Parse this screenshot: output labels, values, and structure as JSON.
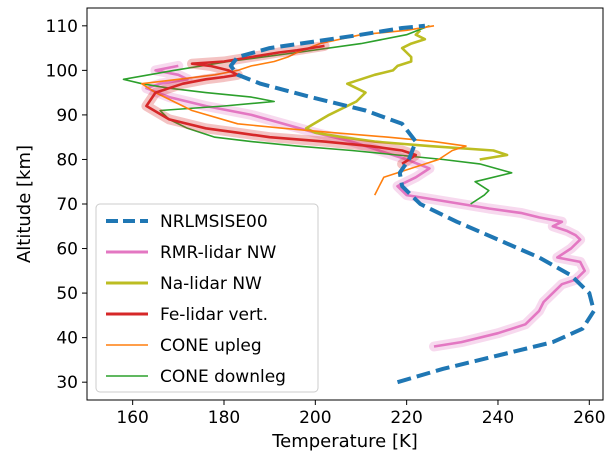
{
  "chart_data": {
    "type": "line",
    "xlabel": "Temperature [K]",
    "ylabel": "Altitude [km]",
    "xlim": [
      150,
      263
    ],
    "ylim": [
      26,
      114
    ],
    "xticks": [
      "160",
      "180",
      "200",
      "220",
      "240",
      "260"
    ],
    "yticks": [
      "30",
      "40",
      "50",
      "60",
      "70",
      "80",
      "90",
      "100",
      "110"
    ],
    "legend_position": "lower-left",
    "series": [
      {
        "name": "NRLMSISE00",
        "color": "#1f77b4",
        "style": "dashed",
        "x": [
          218,
          228,
          240,
          252,
          258.5,
          261,
          260,
          256,
          249,
          240,
          231,
          223,
          219,
          218.5,
          220.5,
          222,
          219,
          211,
          199,
          188,
          183,
          181.5,
          183,
          190,
          200,
          210,
          219,
          224
        ],
        "y": [
          30,
          33,
          36,
          39,
          42,
          46,
          50,
          54,
          58,
          62,
          66,
          70,
          74,
          77,
          80,
          84,
          88,
          91,
          94,
          97,
          99,
          101,
          103,
          105,
          106.5,
          108,
          109.5,
          110
        ]
      },
      {
        "name": "RMR-lidar NW",
        "color": "#e377c2",
        "style": "solid",
        "x": [
          226,
          232,
          240,
          246,
          249,
          250,
          252,
          254,
          257,
          259,
          258,
          253,
          256,
          258,
          257,
          255,
          252,
          254,
          249,
          245,
          238,
          232,
          226,
          220,
          218,
          222,
          225,
          220,
          214,
          208,
          200,
          193,
          186,
          176,
          168,
          163,
          166,
          172,
          170,
          165,
          170
        ],
        "y": [
          38,
          39,
          41,
          43,
          46,
          48,
          50,
          52,
          53,
          55,
          57,
          58,
          60,
          62,
          63,
          64,
          65,
          66,
          67,
          68,
          69,
          70,
          71,
          72,
          74,
          76,
          78,
          80,
          82,
          84,
          86,
          88,
          90,
          92,
          94,
          96,
          97,
          98,
          99,
          100,
          101
        ]
      },
      {
        "name": "Na-lidar NW",
        "color": "#bcbd22",
        "style": "solid",
        "x": [
          236,
          242,
          239,
          225,
          213,
          206,
          200,
          198,
          203,
          209,
          211,
          207,
          213,
          217,
          218,
          221,
          221,
          220,
          219,
          221,
          224,
          222,
          223
        ],
        "y": [
          80,
          81,
          82,
          83,
          84,
          85,
          86,
          87,
          90,
          93,
          95,
          97,
          99,
          100,
          101,
          102,
          103,
          104,
          105,
          106,
          107,
          108,
          109
        ]
      },
      {
        "name": "Fe-lidar vert.",
        "color": "#d62728",
        "style": "solid",
        "x": [
          219,
          222,
          219,
          212,
          202,
          190,
          183,
          176,
          168,
          163,
          165,
          171,
          176,
          180,
          183,
          181,
          177,
          173,
          180,
          186,
          192,
          196,
          199,
          202
        ],
        "y": [
          79,
          81,
          82,
          83,
          84,
          85,
          86,
          87,
          89,
          92,
          95,
          97,
          98,
          98.5,
          99,
          100,
          101,
          101.5,
          102,
          103,
          104,
          104.5,
          105,
          105.5
        ]
      },
      {
        "name": "CONE upleg",
        "color": "#ff7f0e",
        "style": "solid",
        "x": [
          213,
          214,
          215,
          221,
          227,
          230,
          233,
          226,
          216,
          204,
          193,
          183,
          173,
          165,
          162,
          170,
          178,
          183,
          186,
          191,
          194,
          196,
          201,
          210,
          220,
          226
        ],
        "y": [
          72,
          74,
          76,
          78,
          80,
          82,
          83,
          84,
          85,
          86,
          87,
          88,
          91,
          95,
          97,
          98,
          99,
          100,
          101,
          102,
          103,
          104,
          106,
          108,
          109,
          110
        ]
      },
      {
        "name": "CONE downleg",
        "color": "#2ca02c",
        "style": "solid",
        "x": [
          234,
          237,
          238,
          235,
          243,
          236,
          228,
          218,
          208,
          196,
          186,
          178,
          172,
          168,
          166,
          180,
          191,
          186,
          176,
          168,
          162,
          158,
          169,
          181,
          196,
          210,
          220,
          225
        ],
        "y": [
          70,
          72,
          73,
          75,
          77,
          79,
          80,
          81,
          82,
          83,
          84,
          85,
          87,
          89,
          91,
          92,
          93,
          94,
          95,
          96,
          97,
          98,
          100,
          102,
          104,
          106,
          108,
          110
        ]
      }
    ]
  }
}
